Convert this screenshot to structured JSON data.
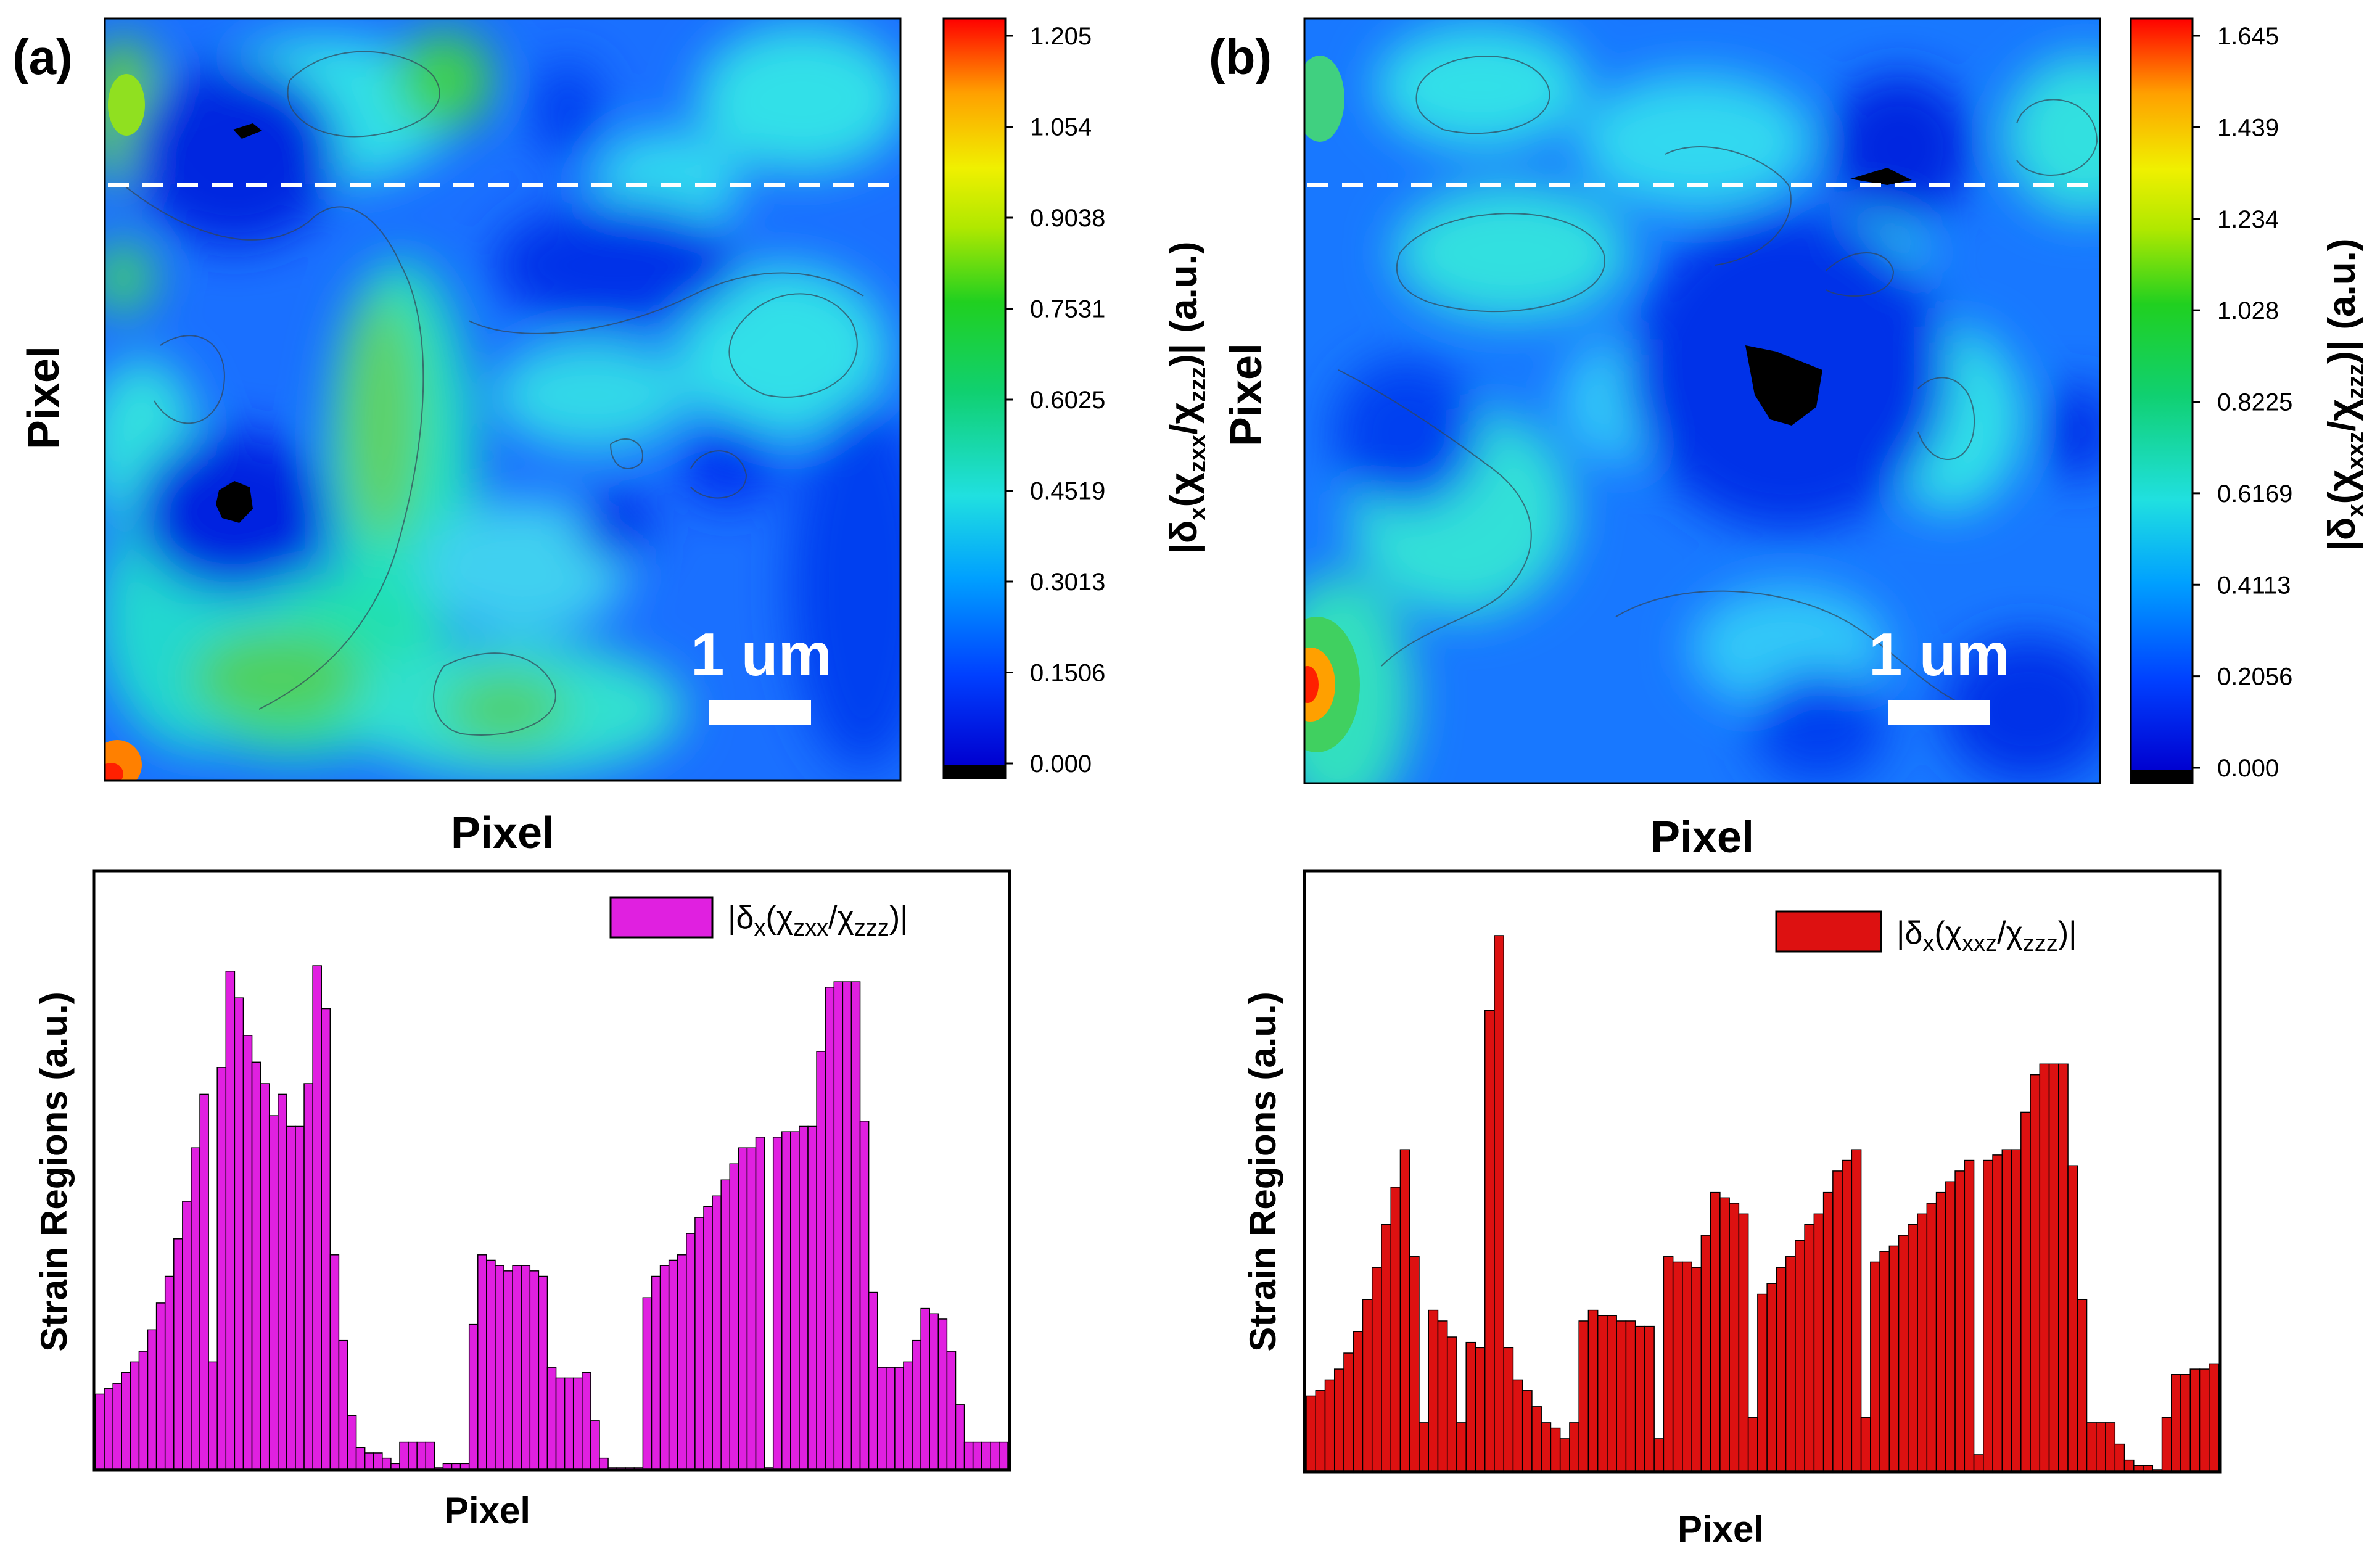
{
  "panels": {
    "a": {
      "label": "(a)",
      "map": {
        "xlabel": "Pixel",
        "ylabel": "Pixel",
        "scalebar_label": "1 um",
        "colorbar_ticks": [
          "1.205",
          "1.054",
          "0.9038",
          "0.7531",
          "0.6025",
          "0.4519",
          "0.3013",
          "0.1506",
          "0.000"
        ],
        "colorbar_title": {
          "prefix": "|δ",
          "sub1": "x",
          "mid": "(χ",
          "sub2": "zxx",
          "slash": "/χ",
          "sub3": "zzz",
          "suffix": ")| (a.u.)"
        }
      },
      "legend": {
        "prefix": "|δ",
        "sub1": "x",
        "mid": "(χ",
        "sub2": "zxx",
        "slash": "/χ",
        "sub3": "zzz",
        "suffix": ")|"
      }
    },
    "b": {
      "label": "(b)",
      "map": {
        "xlabel": "Pixel",
        "ylabel": "Pixel",
        "scalebar_label": "1 um",
        "colorbar_ticks": [
          "1.645",
          "1.439",
          "1.234",
          "1.028",
          "0.8225",
          "0.6169",
          "0.4113",
          "0.2056",
          "0.000"
        ],
        "colorbar_title": {
          "prefix": "|δ",
          "sub1": "x",
          "mid": "(χ",
          "sub2": "xxz",
          "slash": "/χ",
          "sub3": "zzz",
          "suffix": ")| (a.u.)"
        }
      },
      "legend": {
        "prefix": "|δ",
        "sub1": "x",
        "mid": "(χ",
        "sub2": "xxz",
        "slash": "/χ",
        "sub3": "zzz",
        "suffix": ")|"
      }
    }
  },
  "colors": {
    "bar_a": "#e020e0",
    "bar_b": "#dd1111",
    "dashed_line": "#ffffff",
    "colormap": [
      "#000000",
      "#0000e0",
      "#0050ff",
      "#00b0ff",
      "#20e8e8",
      "#00d040",
      "#90e000",
      "#f0f000",
      "#ffa000",
      "#ff0000"
    ]
  },
  "chart_data": [
    {
      "type": "heatmap",
      "name": "(a)",
      "xlabel": "Pixel",
      "ylabel": "Pixel",
      "colorbar_range": [
        0.0,
        1.205
      ],
      "colorbar_ticks": [
        0.0,
        0.1506,
        0.3013,
        0.4519,
        0.6025,
        0.7531,
        0.9038,
        1.054,
        1.205
      ]
    },
    {
      "type": "heatmap",
      "name": "(b)",
      "xlabel": "Pixel",
      "ylabel": "Pixel",
      "colorbar_range": [
        0.0,
        1.645
      ],
      "colorbar_ticks": [
        0.0,
        0.2056,
        0.4113,
        0.6169,
        0.8225,
        1.028,
        1.234,
        1.439,
        1.645
      ]
    },
    {
      "type": "bar",
      "xlabel": "Pixel",
      "ylabel": "Strain Regions (a.u.)",
      "ylim": [
        0,
        1
      ],
      "values": [
        0.14,
        0.15,
        0.16,
        0.18,
        0.2,
        0.22,
        0.26,
        0.31,
        0.36,
        0.43,
        0.5,
        0.6,
        0.7,
        0.2,
        0.75,
        0.93,
        0.88,
        0.81,
        0.76,
        0.72,
        0.66,
        0.7,
        0.64,
        0.64,
        0.72,
        0.94,
        0.86,
        0.4,
        0.24,
        0.1,
        0.04,
        0.03,
        0.03,
        0.02,
        0.01,
        0.05,
        0.05,
        0.05,
        0.05,
        0.0,
        0.01,
        0.01,
        0.01,
        0.27,
        0.4,
        0.39,
        0.38,
        0.37,
        0.38,
        0.38,
        0.37,
        0.36,
        0.19,
        0.17,
        0.17,
        0.17,
        0.18,
        0.09,
        0.02,
        0.0,
        0.0,
        0.0,
        0.0,
        0.32,
        0.36,
        0.38,
        0.39,
        0.4,
        0.44,
        0.47,
        0.49,
        0.51,
        0.54,
        0.57,
        0.6,
        0.6,
        0.62,
        0.0,
        0.62,
        0.63,
        0.63,
        0.64,
        0.64,
        0.78,
        0.9,
        0.91,
        0.91,
        0.91,
        0.65,
        0.33,
        0.19,
        0.19,
        0.19,
        0.2,
        0.24,
        0.3,
        0.29,
        0.28,
        0.22,
        0.12,
        0.05,
        0.05,
        0.05,
        0.05,
        0.05
      ]
    },
    {
      "type": "bar",
      "xlabel": "Pixel",
      "ylabel": "Strain Regions (a.u.)",
      "ylim": [
        0,
        1
      ],
      "values": [
        0.14,
        0.15,
        0.17,
        0.19,
        0.22,
        0.26,
        0.32,
        0.38,
        0.46,
        0.53,
        0.6,
        0.4,
        0.09,
        0.3,
        0.28,
        0.25,
        0.09,
        0.24,
        0.23,
        0.86,
        1.0,
        0.23,
        0.17,
        0.15,
        0.12,
        0.09,
        0.08,
        0.06,
        0.09,
        0.28,
        0.3,
        0.29,
        0.29,
        0.28,
        0.28,
        0.27,
        0.27,
        0.06,
        0.4,
        0.39,
        0.39,
        0.38,
        0.44,
        0.52,
        0.51,
        0.5,
        0.48,
        0.1,
        0.33,
        0.35,
        0.38,
        0.4,
        0.43,
        0.46,
        0.48,
        0.52,
        0.56,
        0.58,
        0.6,
        0.1,
        0.39,
        0.41,
        0.42,
        0.44,
        0.46,
        0.48,
        0.5,
        0.52,
        0.54,
        0.56,
        0.58,
        0.03,
        0.58,
        0.59,
        0.6,
        0.6,
        0.67,
        0.74,
        0.76,
        0.76,
        0.76,
        0.57,
        0.32,
        0.09,
        0.09,
        0.09,
        0.05,
        0.02,
        0.01,
        0.01,
        0.0,
        0.1,
        0.18,
        0.18,
        0.19,
        0.19,
        0.2
      ]
    }
  ],
  "bar_panels": {
    "a": {
      "xlabel": "Pixel",
      "ylabel": "Strain Regions (a.u.)"
    },
    "b": {
      "xlabel": "Pixel",
      "ylabel": "Strain Regions (a.u.)"
    }
  }
}
